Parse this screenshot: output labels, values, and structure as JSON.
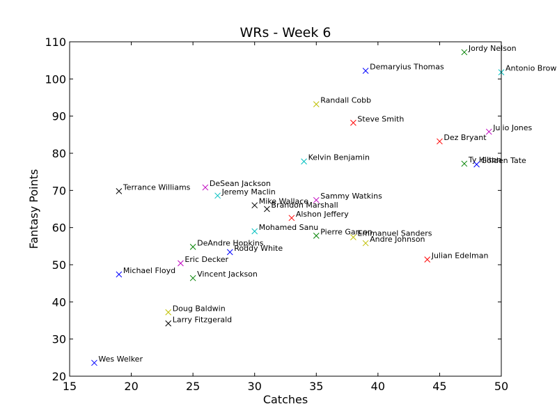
{
  "chart_data": {
    "type": "scatter",
    "title": "WRs - Week 6",
    "xlabel": "Catches",
    "ylabel": "Fantasy Points",
    "xlim": [
      15,
      50
    ],
    "ylim": [
      20,
      110
    ],
    "xticks": [
      15,
      20,
      25,
      30,
      35,
      40,
      45,
      50
    ],
    "yticks": [
      20,
      30,
      40,
      50,
      60,
      70,
      80,
      90,
      100,
      110
    ],
    "grid": false,
    "marker": "x",
    "points": [
      {
        "label": "Jordy Nelson",
        "x": 47,
        "y": 107.2,
        "color": "#008000"
      },
      {
        "label": "Antonio Brown",
        "x": 50,
        "y": 101.8,
        "color": "#00bfbf"
      },
      {
        "label": "Demaryius Thomas",
        "x": 39,
        "y": 102.2,
        "color": "#0000ff"
      },
      {
        "label": "Randall Cobb",
        "x": 35,
        "y": 93.2,
        "color": "#bfbf00"
      },
      {
        "label": "Steve Smith",
        "x": 38,
        "y": 88.2,
        "color": "#ff0000"
      },
      {
        "label": "Julio Jones",
        "x": 49,
        "y": 85.8,
        "color": "#bf00bf"
      },
      {
        "label": "Dez Bryant",
        "x": 45,
        "y": 83.2,
        "color": "#ff0000"
      },
      {
        "label": "Kelvin Benjamin",
        "x": 34,
        "y": 77.8,
        "color": "#00bfbf"
      },
      {
        "label": "Ty Hilton",
        "x": 47,
        "y": 77.2,
        "color": "#008000"
      },
      {
        "label": "Golden Tate",
        "x": 48,
        "y": 77.0,
        "color": "#0000ff"
      },
      {
        "label": "Terrance Williams",
        "x": 19,
        "y": 69.8,
        "color": "#000000"
      },
      {
        "label": "DeSean Jackson",
        "x": 26,
        "y": 70.8,
        "color": "#bf00bf"
      },
      {
        "label": "Jeremy Maclin",
        "x": 27,
        "y": 68.6,
        "color": "#00bfbf"
      },
      {
        "label": "Sammy Watkins",
        "x": 35,
        "y": 67.4,
        "color": "#bf00bf"
      },
      {
        "label": "Mike Wallace",
        "x": 30,
        "y": 66.0,
        "color": "#000000"
      },
      {
        "label": "Brandon Marshall",
        "x": 31,
        "y": 65.0,
        "color": "#000000"
      },
      {
        "label": "Alshon Jeffery",
        "x": 33,
        "y": 62.6,
        "color": "#ff0000"
      },
      {
        "label": "Mohamed Sanu",
        "x": 30,
        "y": 59.0,
        "color": "#00bfbf"
      },
      {
        "label": "Pierre Garcon",
        "x": 35,
        "y": 57.8,
        "color": "#008000"
      },
      {
        "label": "Emmanuel Sanders",
        "x": 38,
        "y": 57.4,
        "color": "#bfbf00"
      },
      {
        "label": "Andre Johnson",
        "x": 39,
        "y": 55.8,
        "color": "#bfbf00"
      },
      {
        "label": "DeAndre Hopkins",
        "x": 25,
        "y": 54.8,
        "color": "#008000"
      },
      {
        "label": "Roddy White",
        "x": 28,
        "y": 53.4,
        "color": "#0000ff"
      },
      {
        "label": "Julian Edelman",
        "x": 44,
        "y": 51.4,
        "color": "#ff0000"
      },
      {
        "label": "Eric Decker",
        "x": 24,
        "y": 50.4,
        "color": "#bf00bf"
      },
      {
        "label": "Michael Floyd",
        "x": 19,
        "y": 47.4,
        "color": "#0000ff"
      },
      {
        "label": "Vincent Jackson",
        "x": 25,
        "y": 46.4,
        "color": "#008000"
      },
      {
        "label": "Doug Baldwin",
        "x": 23,
        "y": 37.2,
        "color": "#bfbf00"
      },
      {
        "label": "Larry Fitzgerald",
        "x": 23,
        "y": 34.2,
        "color": "#000000"
      },
      {
        "label": "Wes Welker",
        "x": 17,
        "y": 23.6,
        "color": "#0000ff"
      }
    ]
  }
}
